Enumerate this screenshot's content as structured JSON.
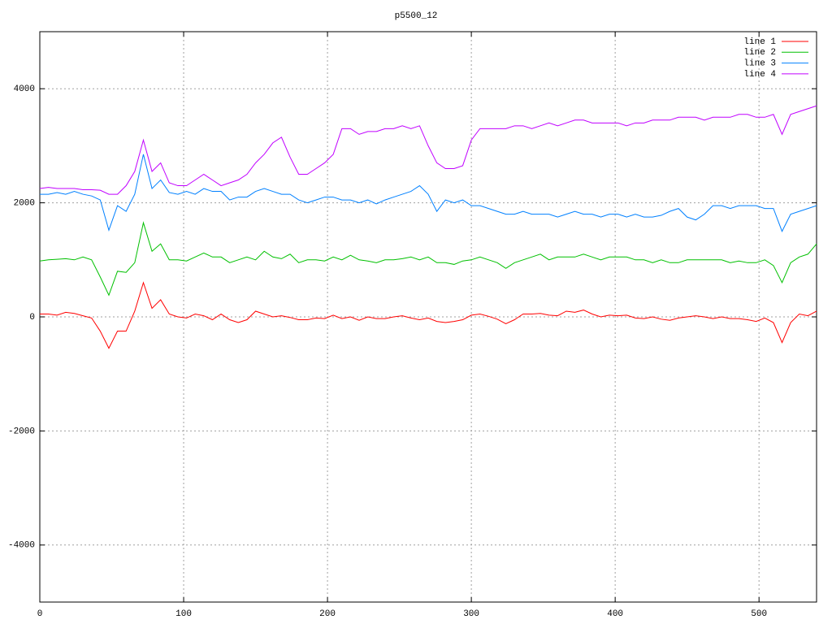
{
  "chart_data": {
    "type": "line",
    "title": "p5500_12",
    "x": [
      0,
      6,
      12,
      18,
      24,
      30,
      36,
      42,
      48,
      54,
      60,
      66,
      72,
      78,
      84,
      90,
      96,
      102,
      108,
      114,
      120,
      126,
      132,
      138,
      144,
      150,
      156,
      162,
      168,
      174,
      180,
      186,
      192,
      198,
      204,
      210,
      216,
      222,
      228,
      234,
      240,
      246,
      252,
      258,
      264,
      270,
      276,
      282,
      288,
      294,
      300,
      306,
      312,
      318,
      324,
      330,
      336,
      342,
      348,
      354,
      360,
      366,
      372,
      378,
      384,
      390,
      396,
      402,
      408,
      414,
      420,
      426,
      432,
      438,
      444,
      450,
      456,
      462,
      468,
      474,
      480,
      486,
      492,
      498,
      504,
      510,
      516,
      522,
      528,
      534,
      540
    ],
    "series": [
      {
        "name": "line 1",
        "color": "#ff0000",
        "values": [
          50,
          50,
          30,
          80,
          60,
          20,
          -20,
          -250,
          -550,
          -250,
          -250,
          100,
          600,
          150,
          300,
          50,
          0,
          -20,
          50,
          20,
          -50,
          50,
          -50,
          -100,
          -50,
          100,
          50,
          0,
          20,
          -10,
          -50,
          -50,
          -20,
          -30,
          30,
          -30,
          0,
          -60,
          0,
          -30,
          -30,
          0,
          20,
          -20,
          -50,
          -20,
          -80,
          -100,
          -80,
          -50,
          30,
          50,
          10,
          -40,
          -120,
          -50,
          50,
          50,
          60,
          30,
          20,
          100,
          80,
          120,
          50,
          0,
          30,
          20,
          30,
          -20,
          -30,
          0,
          -40,
          -60,
          -20,
          0,
          20,
          0,
          -30,
          0,
          -30,
          -30,
          -50,
          -80,
          -20,
          -100,
          -450,
          -100,
          50,
          20,
          100
        ]
      },
      {
        "name": "line 2",
        "color": "#00c000",
        "values": [
          980,
          1000,
          1010,
          1020,
          1000,
          1050,
          1000,
          700,
          380,
          800,
          780,
          950,
          1650,
          1150,
          1280,
          1000,
          1000,
          980,
          1050,
          1120,
          1050,
          1050,
          950,
          1000,
          1050,
          1000,
          1150,
          1050,
          1020,
          1100,
          950,
          1000,
          1000,
          980,
          1050,
          1000,
          1080,
          1000,
          980,
          950,
          1000,
          1000,
          1020,
          1050,
          1000,
          1050,
          950,
          950,
          920,
          980,
          1000,
          1050,
          1000,
          950,
          850,
          950,
          1000,
          1050,
          1100,
          1000,
          1050,
          1050,
          1050,
          1100,
          1050,
          1000,
          1050,
          1050,
          1050,
          1000,
          1000,
          950,
          1000,
          950,
          950,
          1000,
          1000,
          1000,
          1000,
          1000,
          950,
          980,
          950,
          950,
          1000,
          900,
          600,
          950,
          1050,
          1100,
          1280
        ]
      },
      {
        "name": "line 3",
        "color": "#0080ff",
        "values": [
          2150,
          2150,
          2180,
          2150,
          2200,
          2150,
          2120,
          2050,
          1520,
          1950,
          1850,
          2150,
          2850,
          2250,
          2400,
          2180,
          2150,
          2200,
          2150,
          2250,
          2200,
          2200,
          2050,
          2100,
          2100,
          2200,
          2250,
          2200,
          2150,
          2150,
          2050,
          2000,
          2050,
          2100,
          2100,
          2050,
          2050,
          2000,
          2050,
          1980,
          2050,
          2100,
          2150,
          2200,
          2300,
          2150,
          1850,
          2050,
          2000,
          2050,
          1950,
          1950,
          1900,
          1850,
          1800,
          1800,
          1850,
          1800,
          1800,
          1800,
          1750,
          1800,
          1850,
          1800,
          1800,
          1750,
          1800,
          1800,
          1750,
          1800,
          1750,
          1750,
          1780,
          1850,
          1900,
          1750,
          1700,
          1800,
          1950,
          1950,
          1900,
          1950,
          1950,
          1950,
          1900,
          1900,
          1500,
          1800,
          1850,
          1900,
          1950
        ]
      },
      {
        "name": "line 4",
        "color": "#c000ff",
        "values": [
          2250,
          2270,
          2250,
          2250,
          2250,
          2230,
          2230,
          2220,
          2150,
          2150,
          2300,
          2550,
          3100,
          2550,
          2700,
          2350,
          2300,
          2300,
          2400,
          2500,
          2400,
          2300,
          2350,
          2400,
          2500,
          2700,
          2850,
          3050,
          3150,
          2800,
          2500,
          2500,
          2600,
          2700,
          2850,
          3300,
          3300,
          3200,
          3250,
          3250,
          3300,
          3300,
          3350,
          3300,
          3350,
          3000,
          2700,
          2600,
          2600,
          2650,
          3100,
          3300,
          3300,
          3300,
          3300,
          3350,
          3350,
          3300,
          3350,
          3400,
          3350,
          3400,
          3450,
          3450,
          3400,
          3400,
          3400,
          3400,
          3350,
          3400,
          3400,
          3450,
          3450,
          3450,
          3500,
          3500,
          3500,
          3450,
          3500,
          3500,
          3500,
          3550,
          3550,
          3500,
          3500,
          3550,
          3200,
          3550,
          3600,
          3650,
          3700
        ]
      }
    ],
    "xlim": [
      0,
      540
    ],
    "ylim": [
      -5000,
      5000
    ],
    "xticks": [
      0,
      100,
      200,
      300,
      400,
      500
    ],
    "yticks": [
      -4000,
      -2000,
      0,
      2000,
      4000
    ],
    "grid": true,
    "legend": "top-right"
  }
}
